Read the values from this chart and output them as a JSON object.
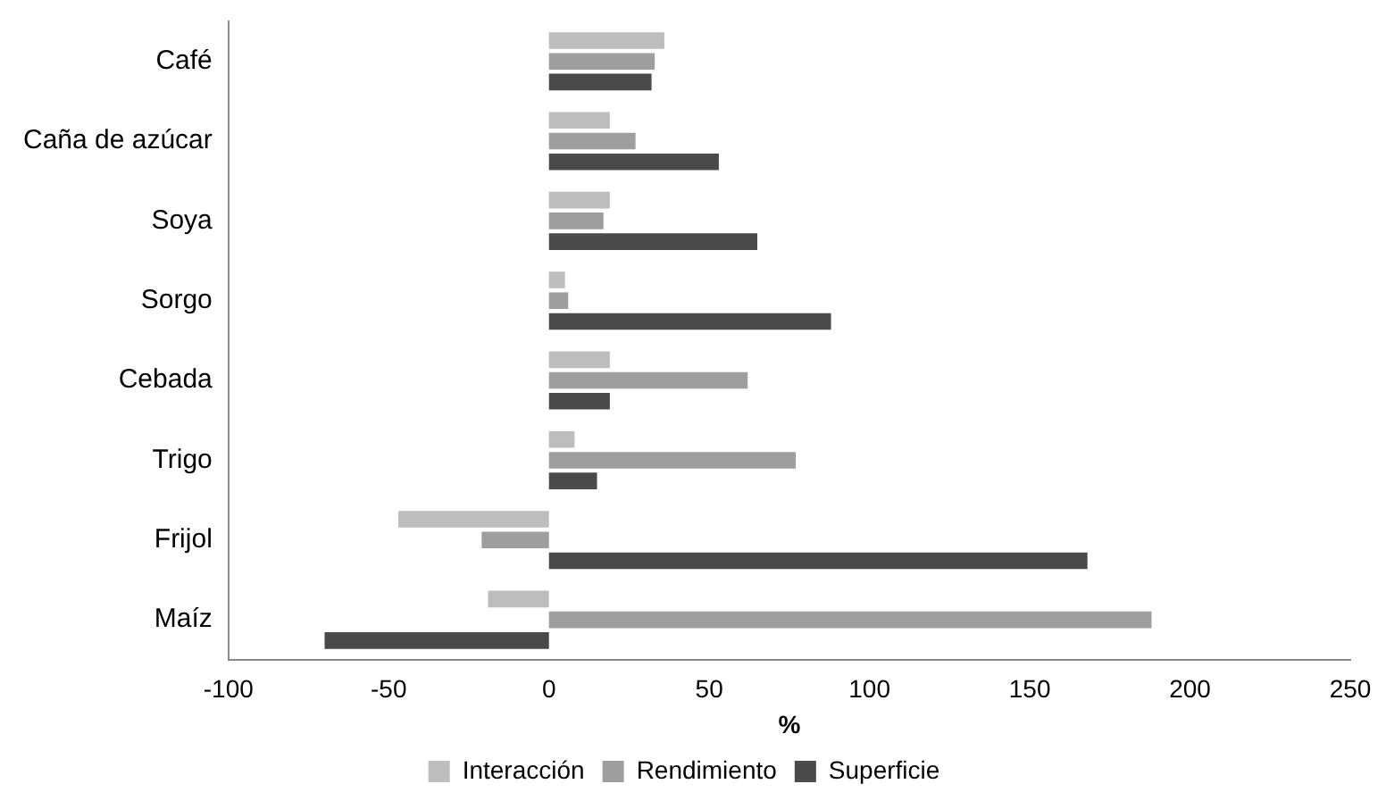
{
  "chart_data": {
    "type": "bar",
    "orientation": "horizontal",
    "xlabel": "%",
    "categories": [
      "Café",
      "Caña de azúcar",
      "Soya",
      "Sorgo",
      "Cebada",
      "Trigo",
      "Frijol",
      "Maíz"
    ],
    "series": [
      {
        "name": "Interacción",
        "color": "#bdbdbd",
        "values": [
          36,
          19,
          19,
          5,
          19,
          8,
          -47,
          -19
        ]
      },
      {
        "name": "Rendimiento",
        "color": "#9e9e9e",
        "values": [
          33,
          27,
          17,
          6,
          62,
          77,
          -21,
          188
        ]
      },
      {
        "name": "Superficie",
        "color": "#4a4a4a",
        "values": [
          32,
          53,
          65,
          88,
          19,
          15,
          168,
          -70
        ]
      }
    ],
    "xlim": [
      -100,
      250
    ],
    "xticks": [
      -100,
      -50,
      0,
      50,
      100,
      150,
      200,
      250
    ],
    "grid": false,
    "legend": "bottom"
  }
}
